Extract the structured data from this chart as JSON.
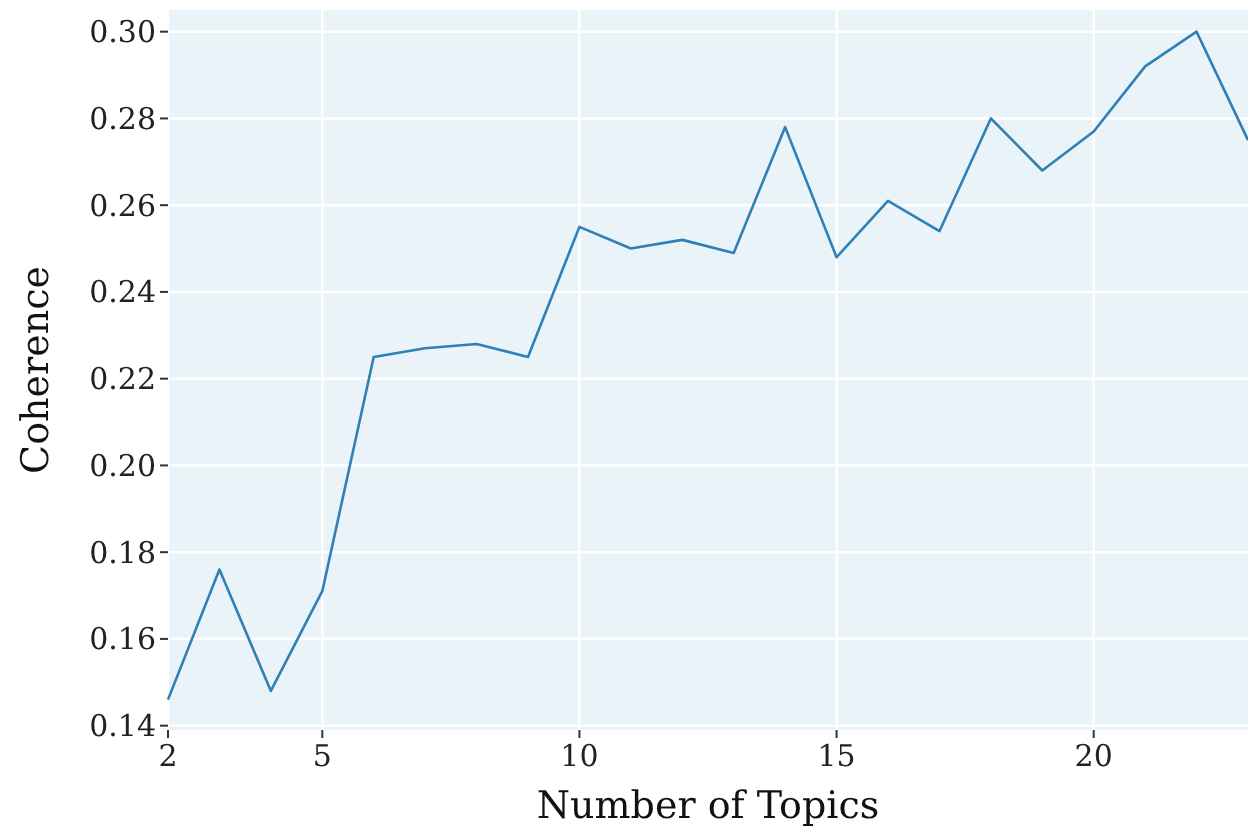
{
  "chart_data": {
    "type": "line",
    "xlabel": "Number of Topics",
    "ylabel": "Coherence",
    "x": [
      2,
      3,
      4,
      5,
      6,
      7,
      8,
      9,
      10,
      11,
      12,
      13,
      14,
      15,
      16,
      17,
      18,
      19,
      20,
      21,
      22,
      23
    ],
    "series": [
      {
        "color": "#2f7fb8",
        "values": [
          0.146,
          0.176,
          0.148,
          0.171,
          0.225,
          0.227,
          0.228,
          0.225,
          0.255,
          0.25,
          0.252,
          0.249,
          0.278,
          0.248,
          0.261,
          0.254,
          0.28,
          0.268,
          0.277,
          0.292,
          0.3,
          0.275
        ]
      }
    ],
    "xlim": [
      2,
      23
    ],
    "xticks": [
      2,
      5,
      10,
      15,
      20
    ],
    "ylim": [
      0.139,
      0.305
    ],
    "yticks": [
      {
        "value": 0.14,
        "label": "0.14"
      },
      {
        "value": 0.16,
        "label": "0.16"
      },
      {
        "value": 0.18,
        "label": "0.18"
      },
      {
        "value": 0.2,
        "label": "0.20"
      },
      {
        "value": 0.22,
        "label": "0.22"
      },
      {
        "value": 0.24,
        "label": "0.24"
      },
      {
        "value": 0.26,
        "label": "0.26"
      },
      {
        "value": 0.28,
        "label": "0.28"
      },
      {
        "value": 0.3,
        "label": "0.30"
      }
    ],
    "grid": true,
    "marker": "none",
    "line_style": "solid"
  }
}
